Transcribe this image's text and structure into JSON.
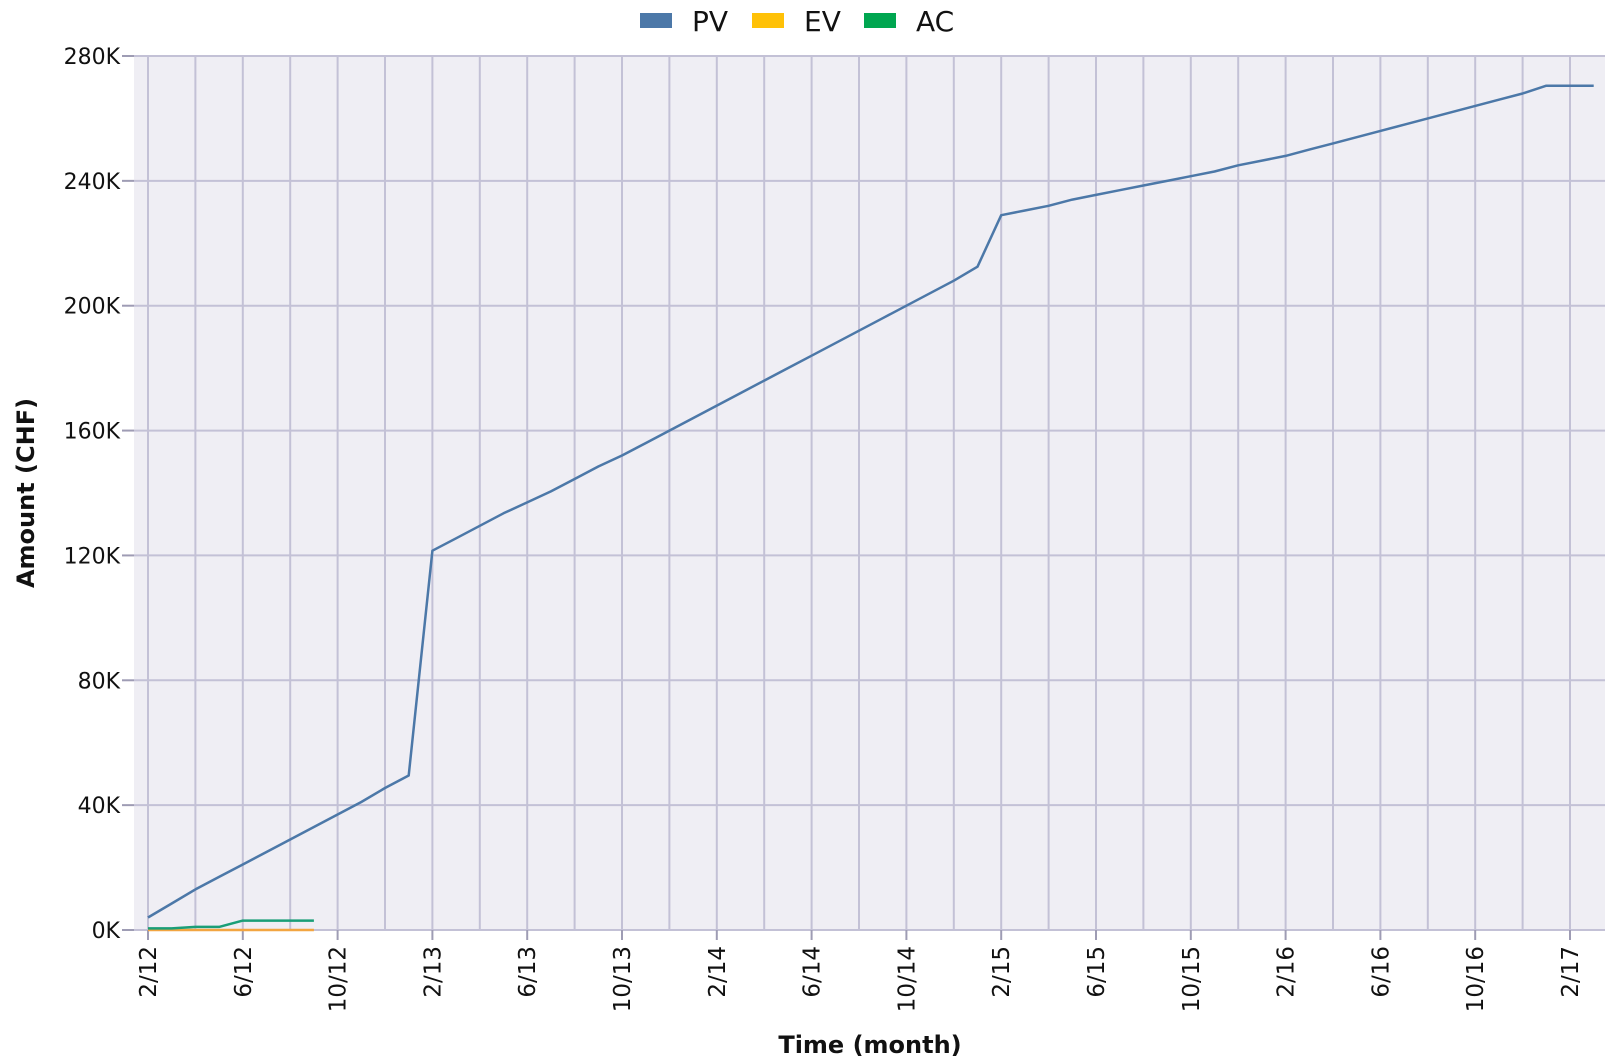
{
  "chart_data": {
    "type": "line",
    "xlabel": "Time (month)",
    "ylabel": "Amount (CHF)",
    "ylim": [
      0,
      280000
    ],
    "yticks": [
      {
        "value": 0,
        "label": "0K"
      },
      {
        "value": 40000,
        "label": "40K"
      },
      {
        "value": 80000,
        "label": "80K"
      },
      {
        "value": 120000,
        "label": "120K"
      },
      {
        "value": 160000,
        "label": "160K"
      },
      {
        "value": 200000,
        "label": "200K"
      },
      {
        "value": 240000,
        "label": "240K"
      },
      {
        "value": 280000,
        "label": "280K"
      }
    ],
    "xlim": [
      "2012-02",
      "2017-03"
    ],
    "xticks": [
      {
        "value": "2012-02",
        "label": "2/12"
      },
      {
        "value": "2012-06",
        "label": "6/12"
      },
      {
        "value": "2012-10",
        "label": "10/12"
      },
      {
        "value": "2013-02",
        "label": "2/13"
      },
      {
        "value": "2013-06",
        "label": "6/13"
      },
      {
        "value": "2013-10",
        "label": "10/13"
      },
      {
        "value": "2014-02",
        "label": "2/14"
      },
      {
        "value": "2014-06",
        "label": "6/14"
      },
      {
        "value": "2014-10",
        "label": "10/14"
      },
      {
        "value": "2015-02",
        "label": "2/15"
      },
      {
        "value": "2015-06",
        "label": "6/15"
      },
      {
        "value": "2015-10",
        "label": "10/15"
      },
      {
        "value": "2016-02",
        "label": "2/16"
      },
      {
        "value": "2016-06",
        "label": "6/16"
      },
      {
        "value": "2016-10",
        "label": "10/16"
      },
      {
        "value": "2017-02",
        "label": "2/17"
      }
    ],
    "grid": true,
    "legend": "top-center",
    "series": [
      {
        "name": "PV",
        "color": "#4c78a8",
        "points": [
          [
            "2012-02",
            4000
          ],
          [
            "2012-03",
            8500
          ],
          [
            "2012-04",
            13000
          ],
          [
            "2012-05",
            17000
          ],
          [
            "2012-06",
            21000
          ],
          [
            "2012-07",
            25000
          ],
          [
            "2012-08",
            29000
          ],
          [
            "2012-09",
            33000
          ],
          [
            "2012-10",
            37000
          ],
          [
            "2012-11",
            41000
          ],
          [
            "2012-12",
            45500
          ],
          [
            "2013-01",
            49500
          ],
          [
            "2013-02",
            121500
          ],
          [
            "2013-03",
            125500
          ],
          [
            "2013-04",
            129500
          ],
          [
            "2013-05",
            133500
          ],
          [
            "2013-06",
            137000
          ],
          [
            "2013-07",
            140500
          ],
          [
            "2013-08",
            144500
          ],
          [
            "2013-09",
            148500
          ],
          [
            "2013-10",
            152000
          ],
          [
            "2013-11",
            156000
          ],
          [
            "2013-12",
            160000
          ],
          [
            "2014-01",
            164000
          ],
          [
            "2014-02",
            168000
          ],
          [
            "2014-03",
            172000
          ],
          [
            "2014-04",
            176000
          ],
          [
            "2014-05",
            180000
          ],
          [
            "2014-06",
            184000
          ],
          [
            "2014-07",
            188000
          ],
          [
            "2014-08",
            192000
          ],
          [
            "2014-09",
            196000
          ],
          [
            "2014-10",
            200000
          ],
          [
            "2014-11",
            204000
          ],
          [
            "2014-12",
            208000
          ],
          [
            "2015-01",
            212500
          ],
          [
            "2015-02",
            229000
          ],
          [
            "2015-03",
            230500
          ],
          [
            "2015-04",
            232000
          ],
          [
            "2015-05",
            234000
          ],
          [
            "2015-06",
            235500
          ],
          [
            "2015-07",
            237000
          ],
          [
            "2015-08",
            238500
          ],
          [
            "2015-09",
            240000
          ],
          [
            "2015-10",
            241500
          ],
          [
            "2015-11",
            243000
          ],
          [
            "2015-12",
            245000
          ],
          [
            "2016-01",
            246500
          ],
          [
            "2016-02",
            248000
          ],
          [
            "2016-03",
            250000
          ],
          [
            "2016-04",
            252000
          ],
          [
            "2016-05",
            254000
          ],
          [
            "2016-06",
            256000
          ],
          [
            "2016-07",
            258000
          ],
          [
            "2016-08",
            260000
          ],
          [
            "2016-09",
            262000
          ],
          [
            "2016-10",
            264000
          ],
          [
            "2016-11",
            266000
          ],
          [
            "2016-12",
            268000
          ],
          [
            "2017-01",
            270500
          ],
          [
            "2017-02",
            270500
          ],
          [
            "2017-03",
            270500
          ]
        ]
      },
      {
        "name": "EV",
        "color": "#f2a541",
        "points": [
          [
            "2012-02",
            0
          ],
          [
            "2012-03",
            0
          ],
          [
            "2012-04",
            0
          ],
          [
            "2012-05",
            0
          ],
          [
            "2012-06",
            0
          ],
          [
            "2012-07",
            0
          ],
          [
            "2012-08",
            0
          ],
          [
            "2012-09",
            0
          ]
        ]
      },
      {
        "name": "AC",
        "color": "#1a9e77",
        "points": [
          [
            "2012-02",
            500
          ],
          [
            "2012-03",
            500
          ],
          [
            "2012-04",
            1000
          ],
          [
            "2012-05",
            1000
          ],
          [
            "2012-06",
            3000
          ],
          [
            "2012-07",
            3000
          ],
          [
            "2012-08",
            3000
          ],
          [
            "2012-09",
            3000
          ]
        ]
      }
    ]
  },
  "legend_items": [
    {
      "name": "PV",
      "color": "#4c78a8"
    },
    {
      "name": "EV",
      "color": "#ffc107"
    },
    {
      "name": "AC",
      "color": "#00a650"
    }
  ]
}
